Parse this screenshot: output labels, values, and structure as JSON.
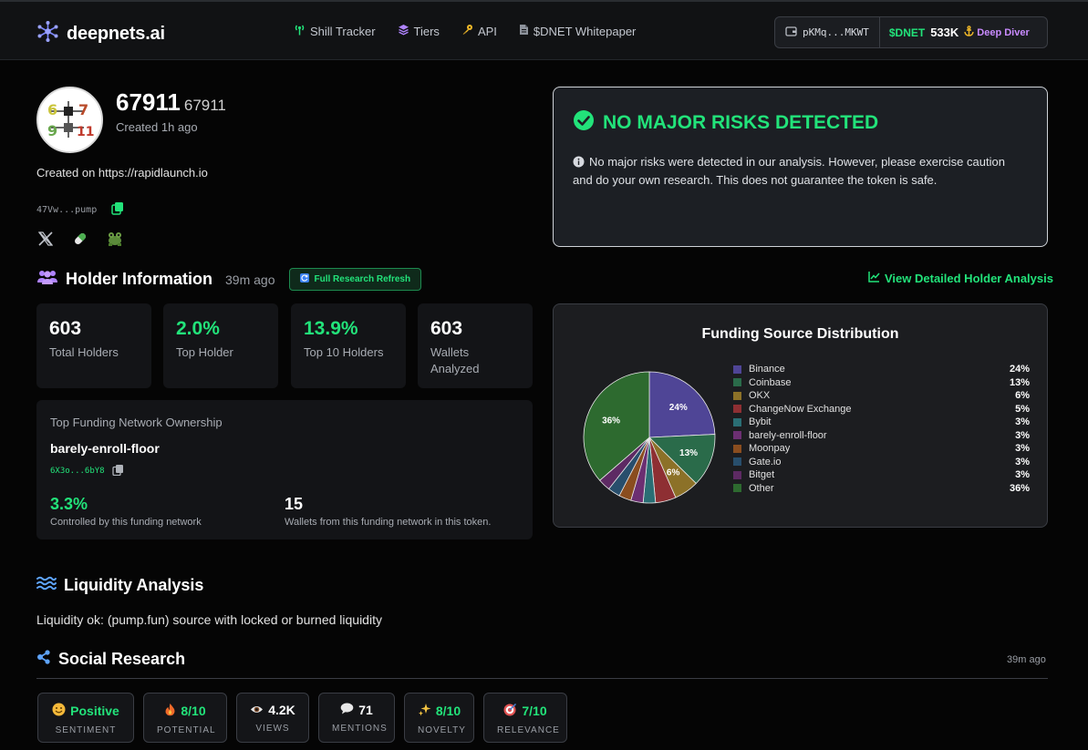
{
  "header": {
    "brand": "deepnets.ai",
    "nav": [
      {
        "label": "Shill Tracker",
        "icon": "antenna-icon"
      },
      {
        "label": "Tiers",
        "icon": "layers-icon"
      },
      {
        "label": "API",
        "icon": "key-icon"
      },
      {
        "label": "$DNET Whitepaper",
        "icon": "document-icon"
      }
    ],
    "wallet": {
      "address": "pKMq...MKWT",
      "ticker": "$DNET",
      "balance": "533K",
      "tier": "Deep Diver"
    }
  },
  "token": {
    "name": "67911",
    "symbol": "67911",
    "created": "Created 1h ago",
    "description": "Created on https://rapidlaunch.io",
    "address": "47Vw...pump",
    "socials": [
      "x-icon",
      "pill-icon",
      "frog-icon"
    ]
  },
  "risk": {
    "title": "NO MAJOR RISKS DETECTED",
    "message": "No major risks were detected in our analysis. However, please exercise caution and do your own research. This does not guarantee the token is safe."
  },
  "holders": {
    "title": "Holder Information",
    "updated": "39m ago",
    "refresh_label": "Full Research Refresh",
    "detail_link": "View Detailed Holder Analysis",
    "stats": [
      {
        "value": "603",
        "label": "Total Holders"
      },
      {
        "value": "2.0%",
        "label": "Top Holder"
      },
      {
        "value": "13.9%",
        "label": "Top 10 Holders"
      },
      {
        "value": "603",
        "label": "Wallets Analyzed"
      }
    ],
    "funding_network": {
      "title": "Top Funding Network Ownership",
      "name": "barely-enroll-floor",
      "address": "6X3o...6bY8",
      "controlled_value": "3.3%",
      "controlled_label": "Controlled by this funding network",
      "wallets_value": "15",
      "wallets_label": "Wallets from this funding network in this token."
    }
  },
  "chart_data": {
    "type": "pie",
    "title": "Funding Source Distribution",
    "slices": [
      {
        "label": "Binance",
        "value": 24,
        "display": "24%",
        "color": "#4f4596"
      },
      {
        "label": "Coinbase",
        "value": 13,
        "display": "13%",
        "color": "#2a6b4a"
      },
      {
        "label": "OKX",
        "value": 6,
        "display": "6%",
        "color": "#8c7128"
      },
      {
        "label": "ChangeNow Exchange",
        "value": 5,
        "display": "5%",
        "color": "#8e2f33"
      },
      {
        "label": "Bybit",
        "value": 3,
        "display": "3%",
        "color": "#2a6e74"
      },
      {
        "label": "barely-enroll-floor",
        "value": 3,
        "display": "3%",
        "color": "#6c2f72"
      },
      {
        "label": "Moonpay",
        "value": 3,
        "display": "3%",
        "color": "#8a4d1f"
      },
      {
        "label": "Gate.io",
        "value": 3,
        "display": "3%",
        "color": "#284e6c"
      },
      {
        "label": "Bitget",
        "value": 3,
        "display": "3%",
        "color": "#5d2a63"
      },
      {
        "label": "Other",
        "value": 36,
        "display": "36%",
        "color": "#2d6a2f"
      }
    ]
  },
  "liquidity": {
    "title": "Liquidity Analysis",
    "text": "Liquidity ok: (pump.fun) source with locked or burned liquidity"
  },
  "social": {
    "title": "Social Research",
    "updated": "39m ago",
    "metrics": [
      {
        "icon": "smile-icon",
        "value": "Positive",
        "label": "SENTIMENT",
        "green": true
      },
      {
        "icon": "fire-icon",
        "value": "8/10",
        "label": "POTENTIAL",
        "green": true
      },
      {
        "icon": "eye-icon",
        "value": "4.2K",
        "label": "VIEWS",
        "green": false
      },
      {
        "icon": "speech-bubble-icon",
        "value": "71",
        "label": "MENTIONS",
        "green": false
      },
      {
        "icon": "sparkles-icon",
        "value": "8/10",
        "label": "NOVELTY",
        "green": true
      },
      {
        "icon": "target-icon",
        "value": "7/10",
        "label": "RELEVANCE",
        "green": true
      }
    ]
  },
  "colors": {
    "accent": "#22e37a",
    "tier": "#c98bff",
    "background": "#050505"
  }
}
